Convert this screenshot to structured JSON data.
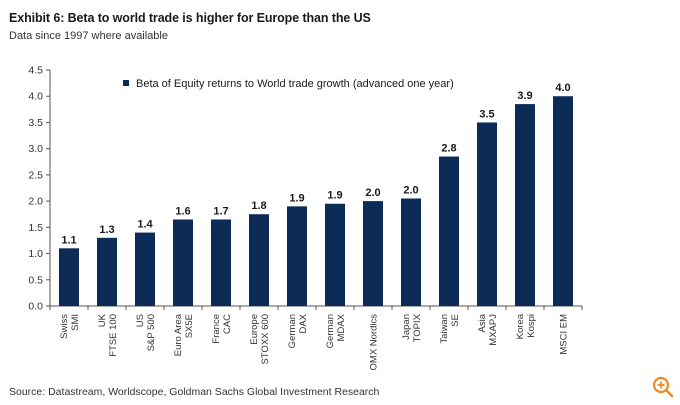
{
  "header": {
    "title": "Exhibit 6: Beta to world trade is higher for Europe than the US",
    "subtitle": "Data since 1997 where available"
  },
  "footer": {
    "source": "Source: Datastream, Worldscope, Goldman Sachs Global Investment Research"
  },
  "icons": {
    "zoom": "zoom-in-icon"
  },
  "colors": {
    "bar": "#0d2b57",
    "zoom": "#f08a1c",
    "axis": "#555555"
  },
  "chart_data": {
    "type": "bar",
    "title": "Exhibit 6: Beta to world trade is higher for Europe than the US",
    "subtitle": "Data since 1997 where available",
    "xlabel": "",
    "ylabel": "",
    "ylim": [
      0,
      4.5
    ],
    "yticks": [
      "0.0",
      "0.5",
      "1.0",
      "1.5",
      "2.0",
      "2.5",
      "3.0",
      "3.5",
      "4.0",
      "4.5"
    ],
    "grid": false,
    "legend_position": "top",
    "categories": [
      [
        "Swiss",
        "SMI"
      ],
      [
        "UK",
        "FTSE 100"
      ],
      [
        "US",
        "S&P 500"
      ],
      [
        "Euro Area",
        "SX5E"
      ],
      [
        "France",
        "CAC"
      ],
      [
        "Europe",
        "STOXX 600"
      ],
      [
        "German",
        "DAX"
      ],
      [
        "German",
        "MDAX"
      ],
      [
        "OMX Nordics"
      ],
      [
        "Japan",
        "TOPIX"
      ],
      [
        "Taiwan",
        "SE"
      ],
      [
        "Asia",
        "MXAPJ"
      ],
      [
        "Korea",
        "Kospi"
      ],
      [
        "MSCI EM"
      ]
    ],
    "series": [
      {
        "name": "Beta of Equity returns to World trade growth (advanced one year)",
        "values": [
          1.1,
          1.3,
          1.4,
          1.65,
          1.65,
          1.75,
          1.9,
          1.95,
          2.0,
          2.05,
          2.85,
          3.5,
          3.85,
          4.0
        ],
        "labels": [
          "1.1",
          "1.3",
          "1.4",
          "1.6",
          "1.7",
          "1.8",
          "1.9",
          "1.9",
          "2.0",
          "2.0",
          "2.8",
          "3.5",
          "3.9",
          "4.0"
        ]
      }
    ]
  }
}
